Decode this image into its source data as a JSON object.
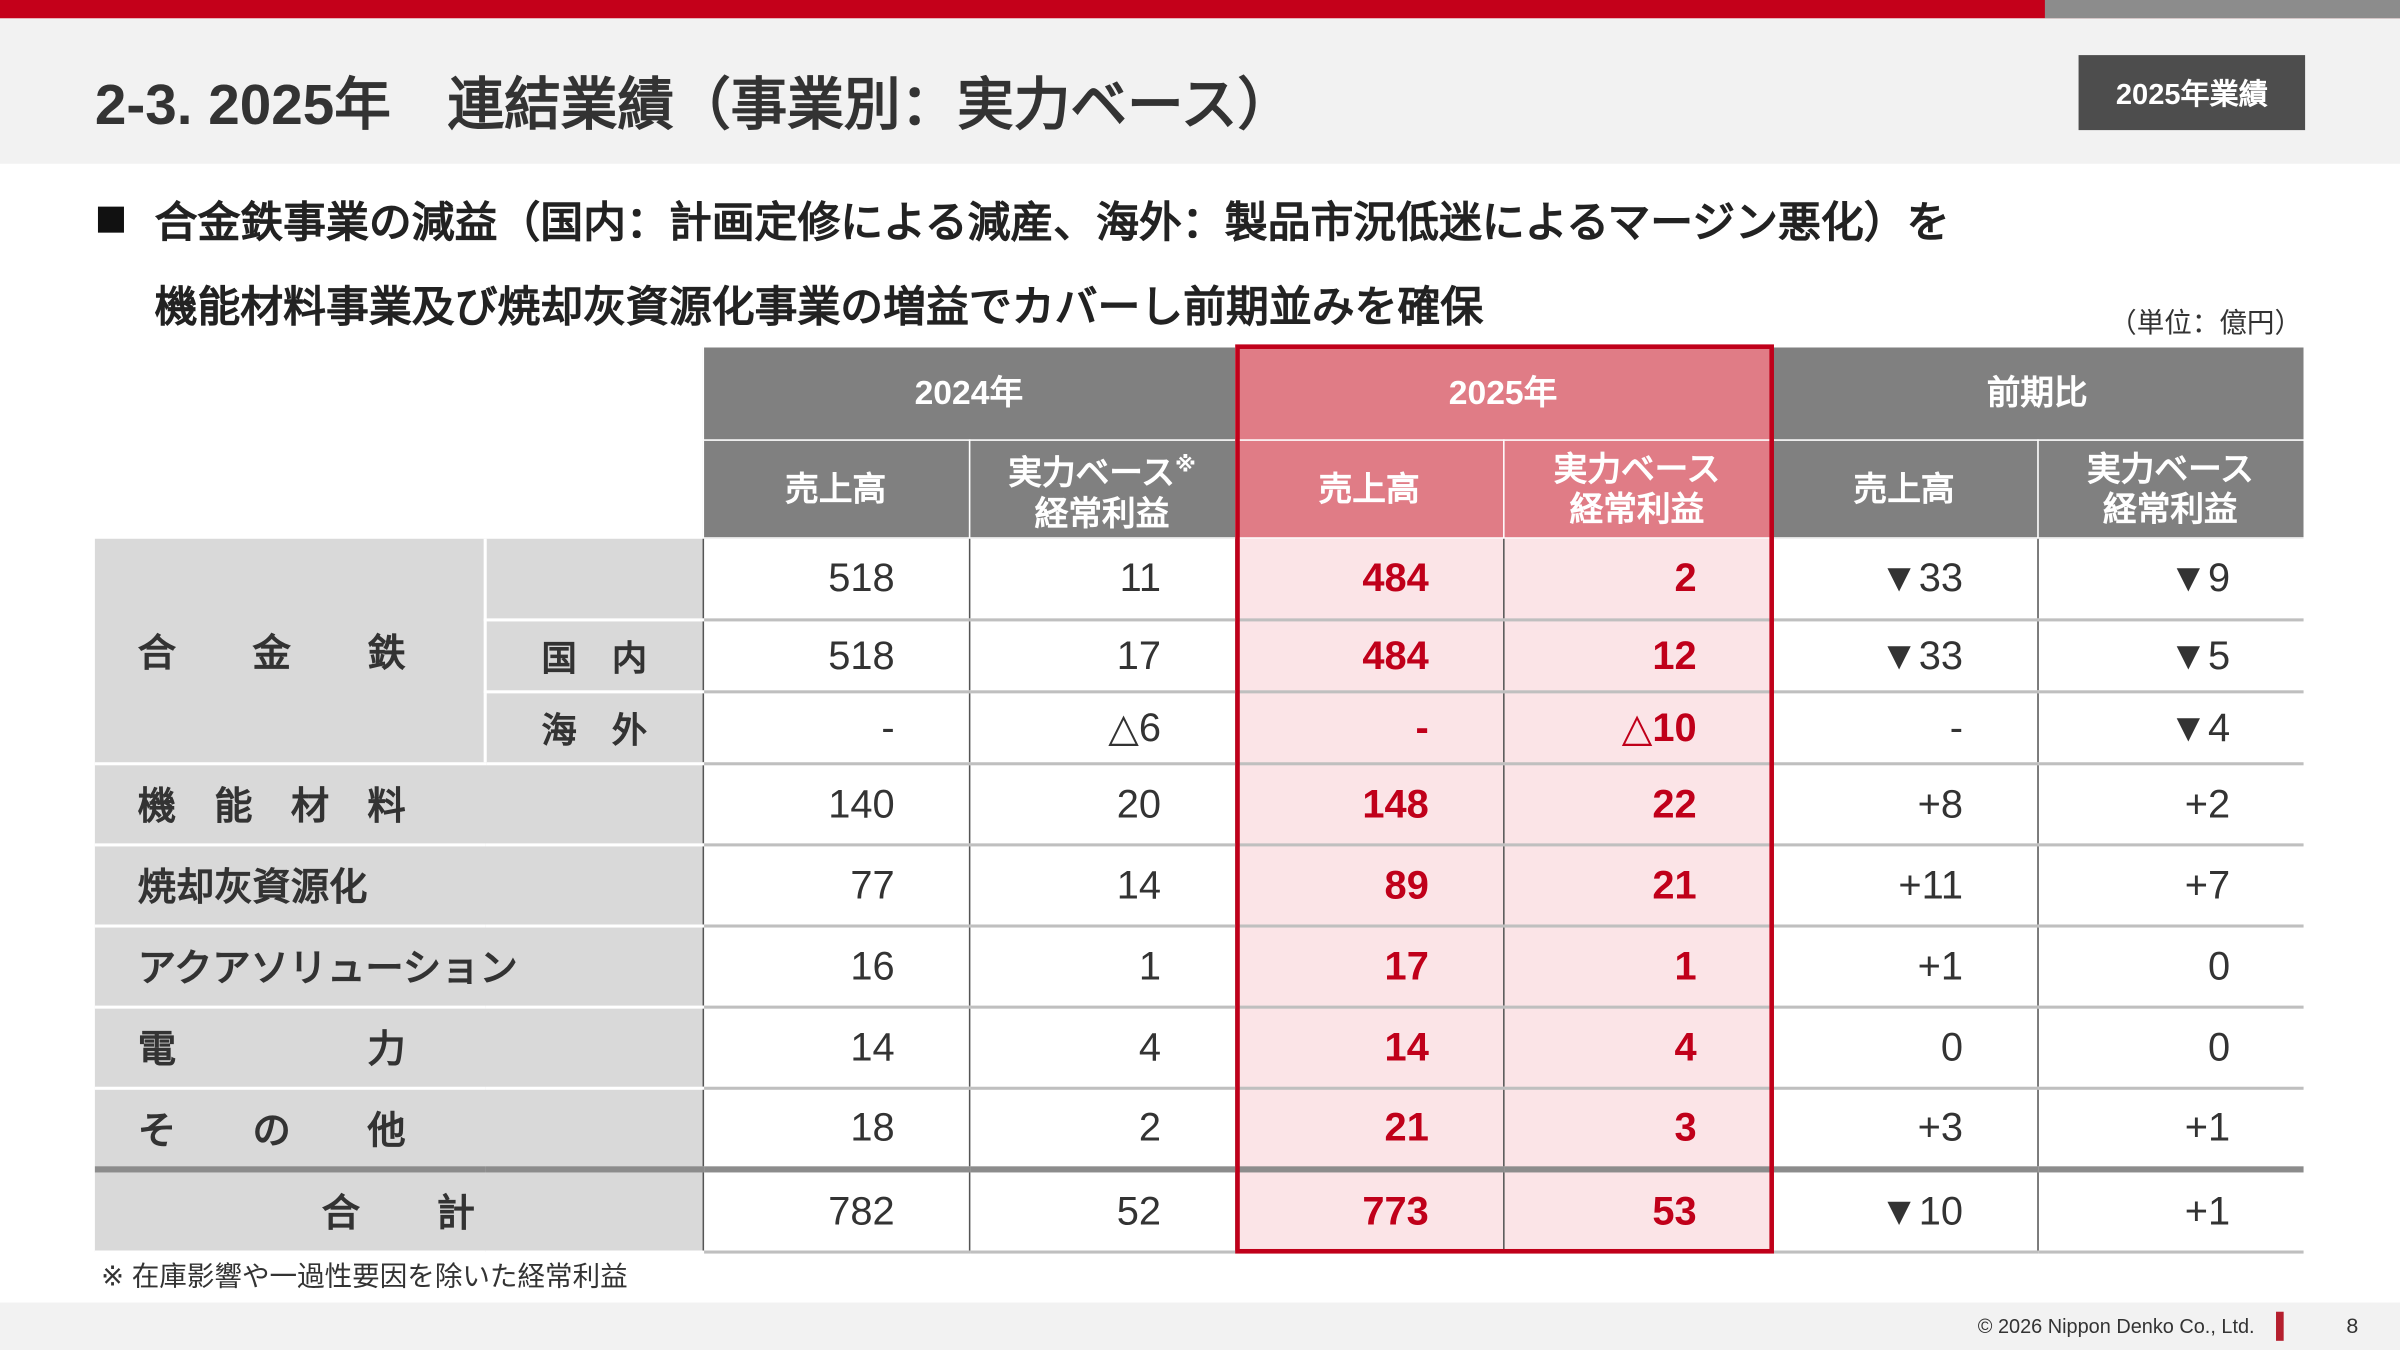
{
  "header": {
    "title": "2-3. 2025年　連結業績（事業別：実力ベース）",
    "badge": "2025年業績"
  },
  "lead": {
    "line1": "合金鉄事業の減益（国内：計画定修による減産、海外：製品市況低迷によるマージン悪化）を",
    "line2": "機能材料事業及び焼却灰資源化事業の増益でカバーし前期並みを確保"
  },
  "unit": "（単位：億円）",
  "colors": {
    "accent": "#c4001a",
    "header_gray": "#808080",
    "highlight_header": "#e07c86",
    "highlight_cell": "#fbe4e7"
  },
  "table": {
    "groups": [
      "2024年",
      "2025年",
      "前期比"
    ],
    "sub_headers": {
      "sales": "売上高",
      "profit_l1": "実力ベース",
      "profit_mark": "※",
      "profit_l2": "経常利益",
      "profit_l1_plain": "実力ベース"
    },
    "rows": [
      {
        "label": "合　　金　　鉄",
        "sub": "",
        "values": [
          "518",
          "11",
          "484",
          "2",
          "▼33",
          "▼9"
        ]
      },
      {
        "label": "",
        "sub": "国　内",
        "values": [
          "518",
          "17",
          "484",
          "12",
          "▼33",
          "▼5"
        ]
      },
      {
        "label": "",
        "sub": "海　外",
        "values": [
          "-",
          "△6",
          "-",
          "△10",
          "-",
          "▼4"
        ]
      },
      {
        "label": "機　能　材　料",
        "values": [
          "140",
          "20",
          "148",
          "22",
          "+8",
          "+2"
        ]
      },
      {
        "label": "焼却灰資源化",
        "values": [
          "77",
          "14",
          "89",
          "21",
          "+11",
          "+7"
        ]
      },
      {
        "label": "アクアソリューション",
        "values": [
          "16",
          "1",
          "17",
          "1",
          "+1",
          "0"
        ]
      },
      {
        "label": "電　　　　　力",
        "values": [
          "14",
          "4",
          "14",
          "4",
          "0",
          "0"
        ]
      },
      {
        "label": "そ　　の　　他",
        "values": [
          "18",
          "2",
          "21",
          "3",
          "+3",
          "+1"
        ]
      }
    ],
    "total": {
      "label": "合　　計",
      "values": [
        "782",
        "52",
        "773",
        "53",
        "▼10",
        "+1"
      ]
    }
  },
  "footnote": "※ 在庫影響や一過性要因を除いた経常利益",
  "footer": {
    "copyright": "© 2026 Nippon Denko Co., Ltd.",
    "page": "8"
  }
}
